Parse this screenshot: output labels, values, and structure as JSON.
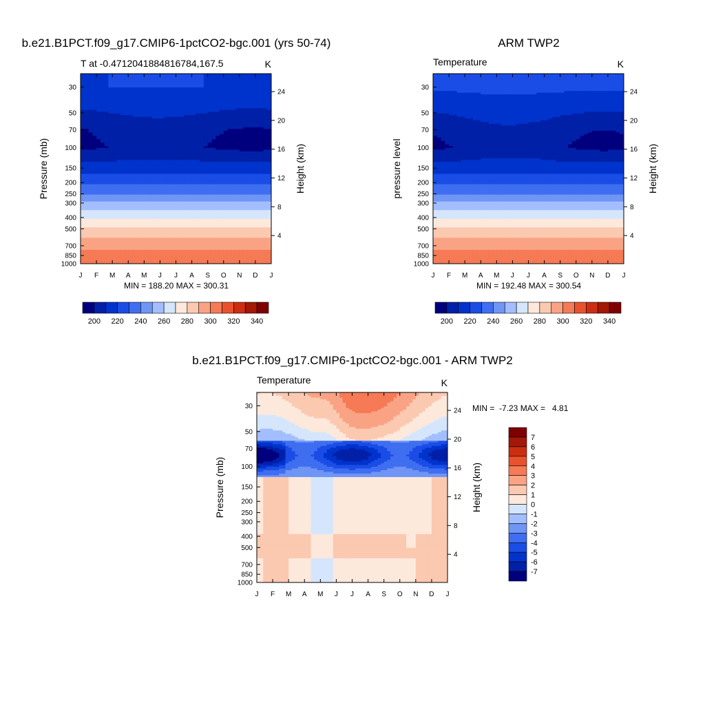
{
  "months": [
    "J",
    "F",
    "M",
    "A",
    "M",
    "J",
    "J",
    "A",
    "S",
    "O",
    "N",
    "D",
    "J"
  ],
  "pressure_ticks": [
    30,
    50,
    70,
    100,
    150,
    200,
    250,
    300,
    400,
    500,
    700,
    850,
    1000
  ],
  "height_ticks": [
    24,
    20,
    16,
    12,
    8,
    4
  ],
  "panels": [
    {
      "id": "model",
      "title": "b.e21.B1PCT.f09_g17.CMIP6-1pctCO2-bgc.001 (yrs 50-74)",
      "left_label": "T at -0.4712041884816784,167.5",
      "right_label": "K",
      "ylabel": "Pressure (mb)",
      "ylabel_right": "Height (km)",
      "stats": "MIN = 188.20 MAX = 300.31"
    },
    {
      "id": "obs",
      "title": "ARM TWP2",
      "left_label": "Temperature",
      "right_label": "K",
      "ylabel": "pressure level",
      "ylabel_right": "Height (km)",
      "stats": "MIN = 192.48 MAX = 300.54"
    },
    {
      "id": "diff",
      "title": "b.e21.B1PCT.f09_g17.CMIP6-1pctCO2-bgc.001 - ARM TWP2",
      "left_label": "Temperature",
      "right_label": "K",
      "ylabel": "Pressure (mb)",
      "ylabel_right": "Height (km)",
      "stats": "MIN =  -7.23 MAX =   4.81"
    }
  ],
  "temp_colorbar": {
    "colors": [
      "#00007f",
      "#0020a8",
      "#0033cc",
      "#1a4de6",
      "#3f6ef0",
      "#6f95f5",
      "#a3beff",
      "#d5e6fc",
      "#fde8dc",
      "#fbc9b0",
      "#f9a384",
      "#f57a55",
      "#e8532e",
      "#cc2e12",
      "#a31806",
      "#7f0000"
    ],
    "labels": [
      "200",
      "220",
      "240",
      "260",
      "280",
      "300",
      "320",
      "340"
    ]
  },
  "diff_colorbar": {
    "colors": [
      "#7f0000",
      "#a31806",
      "#cc2e12",
      "#e8532e",
      "#f57a55",
      "#f9a384",
      "#fbc9b0",
      "#fde8dc",
      "#d5e6fc",
      "#a3beff",
      "#6f95f5",
      "#3f6ef0",
      "#1a4de6",
      "#0033cc",
      "#0020a8",
      "#00007f"
    ],
    "labels": [
      "7",
      "6",
      "5",
      "4",
      "3",
      "2",
      "1",
      "0",
      "-1",
      "-2",
      "-3",
      "-4",
      "-5",
      "-6",
      "-7"
    ]
  },
  "chart_data": [
    {
      "type": "heatmap",
      "title": "b.e21.B1PCT.f09_g17.CMIP6-1pctCO2-bgc.001 (yrs 50-74)",
      "variable": "T at -0.4712041884816784,167.5",
      "units": "K",
      "x": [
        "J",
        "F",
        "M",
        "A",
        "M",
        "J",
        "J",
        "A",
        "S",
        "O",
        "N",
        "D",
        "J"
      ],
      "y_axis": "Pressure (mb)",
      "y_right_axis": "Height (km)",
      "pressure_levels": [
        30,
        50,
        70,
        100,
        150,
        200,
        250,
        300,
        400,
        500,
        700,
        850,
        1000
      ],
      "profile_values": [
        210,
        200,
        192,
        190,
        205,
        218,
        230,
        242,
        258,
        272,
        286,
        294,
        300
      ],
      "min": 188.2,
      "max": 300.31
    },
    {
      "type": "heatmap",
      "title": "ARM TWP2",
      "variable": "Temperature",
      "units": "K",
      "x": [
        "J",
        "F",
        "M",
        "A",
        "M",
        "J",
        "J",
        "A",
        "S",
        "O",
        "N",
        "D",
        "J"
      ],
      "y_axis": "pressure level",
      "y_right_axis": "Height (km)",
      "pressure_levels": [
        30,
        50,
        70,
        100,
        150,
        200,
        250,
        300,
        400,
        500,
        700,
        850,
        1000
      ],
      "profile_values": [
        212,
        202,
        194,
        191,
        205,
        218,
        230,
        242,
        258,
        272,
        286,
        294,
        300
      ],
      "min": 192.48,
      "max": 300.54
    },
    {
      "type": "heatmap",
      "title": "b.e21.B1PCT.f09_g17.CMIP6-1pctCO2-bgc.001 - ARM TWP2",
      "variable": "Temperature",
      "units": "K",
      "x": [
        "J",
        "F",
        "M",
        "A",
        "M",
        "J",
        "J",
        "A",
        "S",
        "O",
        "N",
        "D",
        "J"
      ],
      "y_axis": "Pressure (mb)",
      "y_right_axis": "Height (km)",
      "pressure_levels": [
        30,
        50,
        70,
        100,
        150,
        200,
        250,
        300,
        400,
        500,
        700,
        850,
        1000
      ],
      "min": -7.23,
      "max": 4.81
    }
  ]
}
